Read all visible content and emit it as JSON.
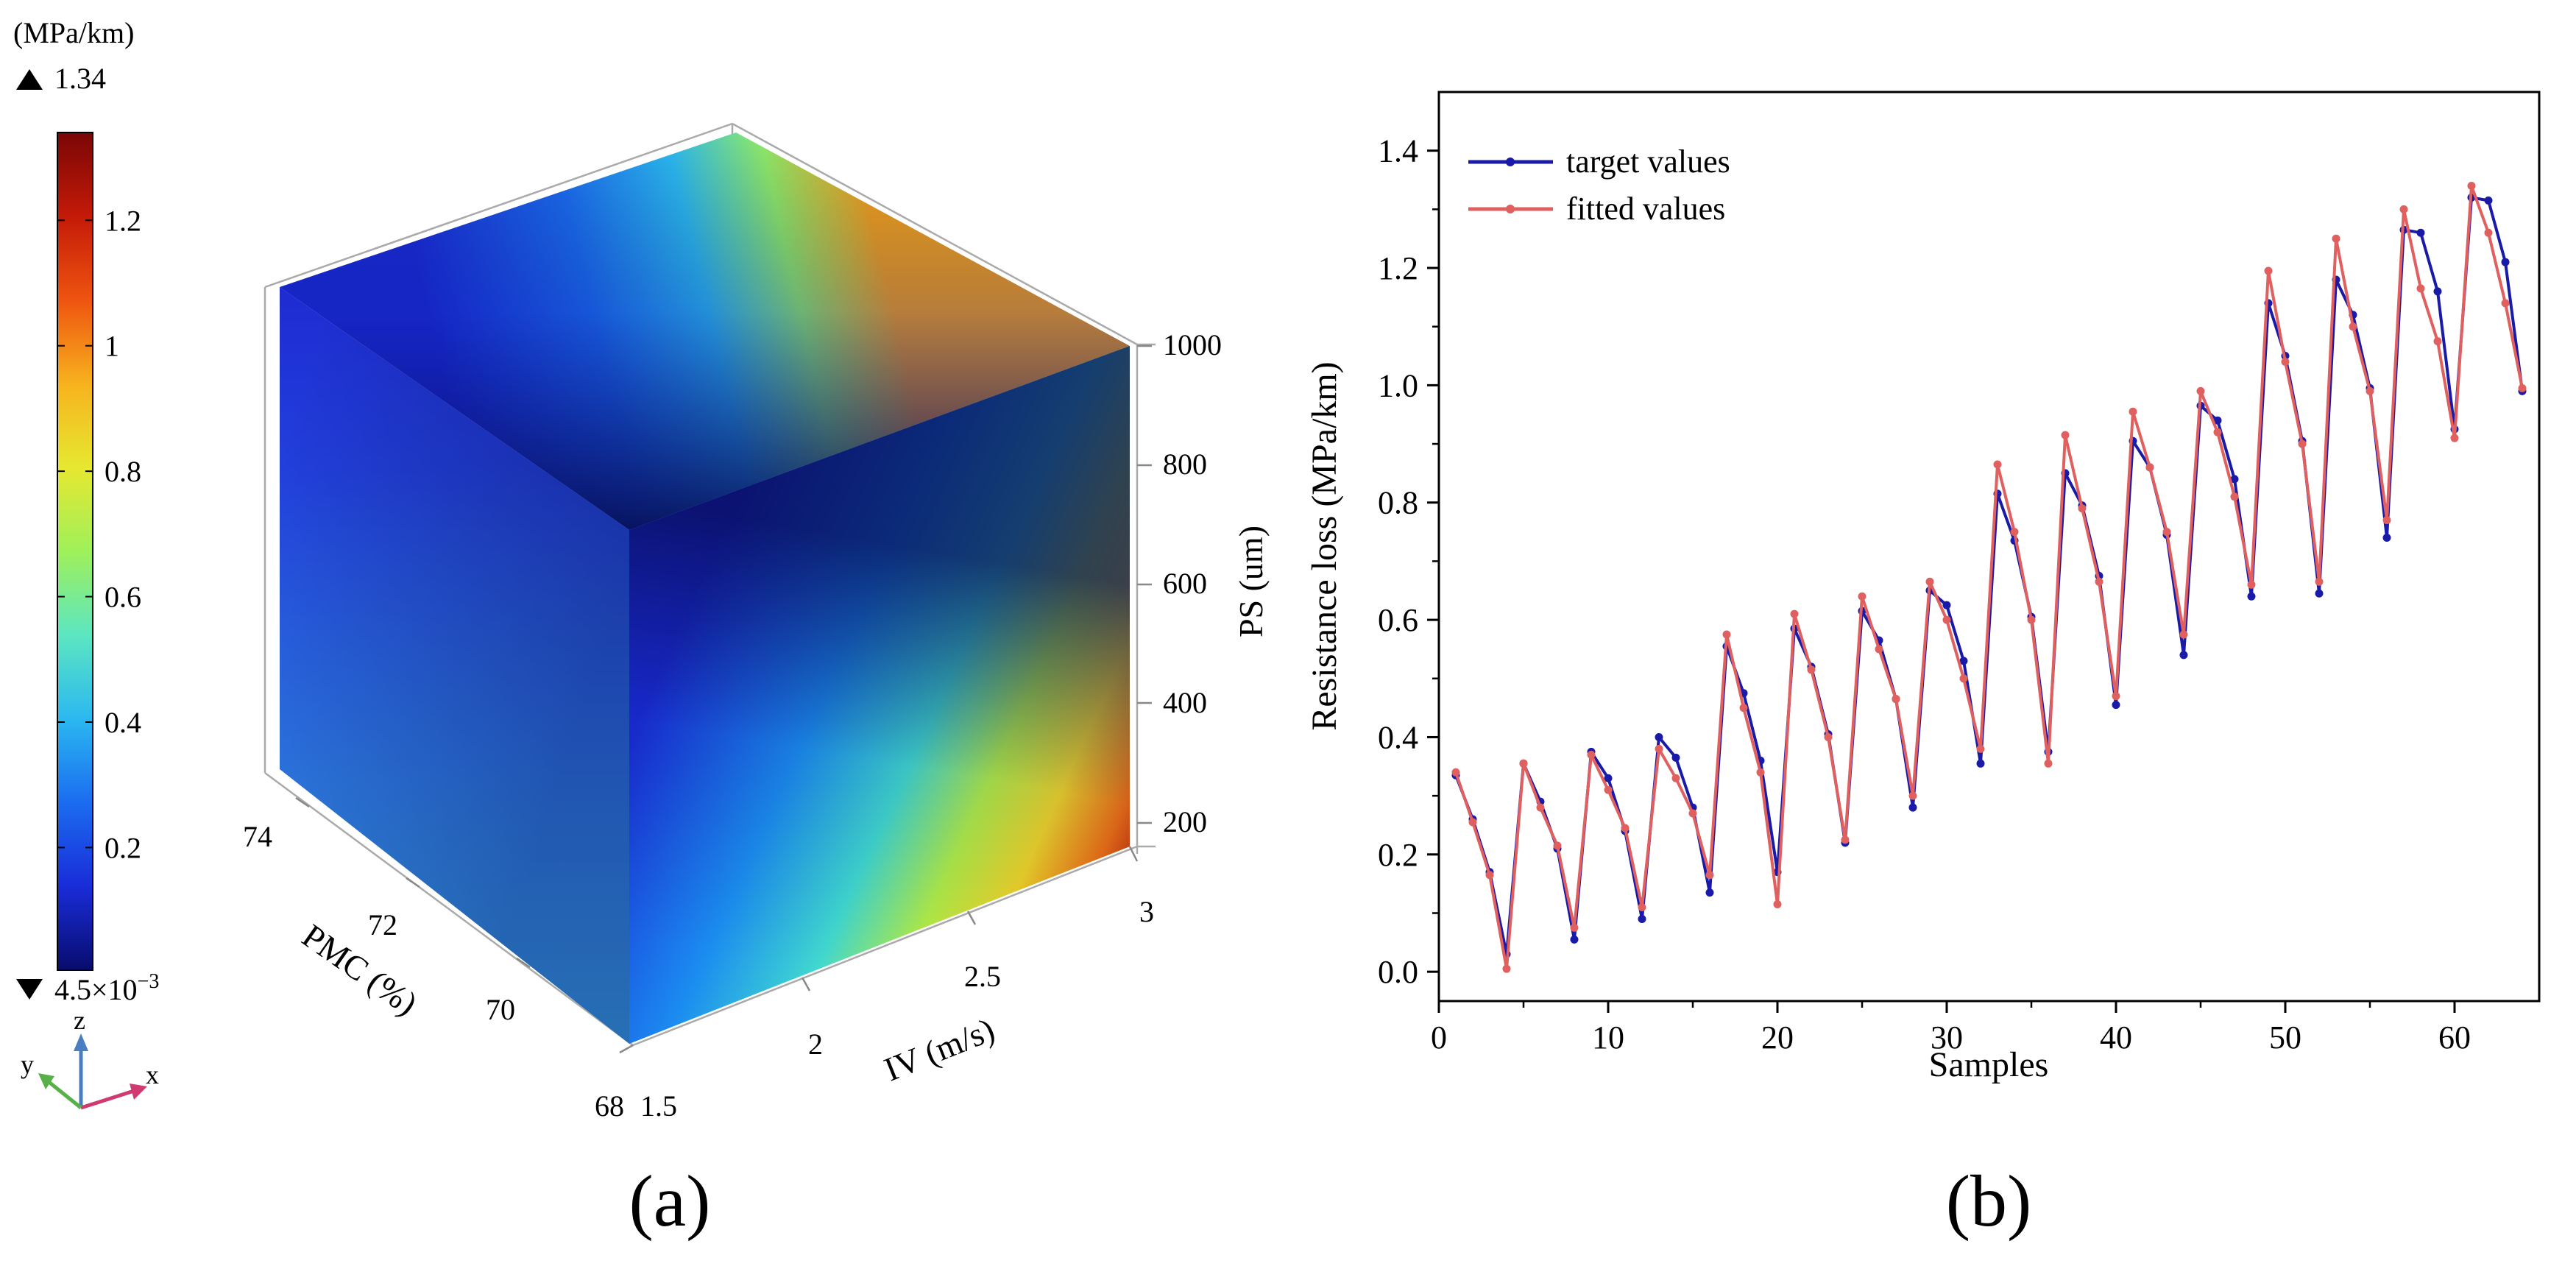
{
  "panels": {
    "a_label": "(a)",
    "b_label": "(b)"
  },
  "colorbar": {
    "unit": "(MPa/km)",
    "max_label": "1.34",
    "min_label": "4.5×10",
    "min_exp": "−3",
    "ticks": [
      "0.2",
      "0.4",
      "0.6",
      "0.8",
      "1",
      "1.2"
    ],
    "tick_values": [
      0.2,
      0.4,
      0.6,
      0.8,
      1.0,
      1.2
    ],
    "min": 0.0045,
    "max": 1.34,
    "colors": [
      "#080c6e",
      "#1a2cd8",
      "#1b6cf0",
      "#2bb8f0",
      "#5ce6c2",
      "#9ff05a",
      "#e6e830",
      "#f7b21e",
      "#ee5410",
      "#c41a08",
      "#7a0606"
    ]
  },
  "triad": {
    "x": "x",
    "y": "y",
    "z": "z"
  },
  "cube": {
    "pmc_ticks": [
      "74",
      "72",
      "70",
      "68"
    ],
    "iv_ticks": [
      "1.5",
      "2",
      "2.5",
      "3"
    ],
    "ps_ticks": [
      "200",
      "400",
      "600",
      "800",
      "1000"
    ],
    "pmc_label": "PMC (%)",
    "iv_label": "IV (m/s)",
    "ps_label": "PS (um)"
  },
  "chart_data": {
    "type": "line",
    "title": "",
    "xlabel": "Samples",
    "ylabel": "Resistance loss (MPa/km)",
    "xlim": [
      0,
      65
    ],
    "ylim": [
      -0.05,
      1.5
    ],
    "xticks": [
      0,
      10,
      20,
      30,
      40,
      50,
      60
    ],
    "yticks": [
      0.0,
      0.2,
      0.4,
      0.6,
      0.8,
      1.0,
      1.2,
      1.4
    ],
    "xtick_labels": [
      "0",
      "10",
      "20",
      "30",
      "40",
      "50",
      "60"
    ],
    "ytick_labels": [
      "0.0",
      "0.2",
      "0.4",
      "0.6",
      "0.8",
      "1.0",
      "1.2",
      "1.4"
    ],
    "legend_position": "top-left",
    "x": [
      1,
      2,
      3,
      4,
      5,
      6,
      7,
      8,
      9,
      10,
      11,
      12,
      13,
      14,
      15,
      16,
      17,
      18,
      19,
      20,
      21,
      22,
      23,
      24,
      25,
      26,
      27,
      28,
      29,
      30,
      31,
      32,
      33,
      34,
      35,
      36,
      37,
      38,
      39,
      40,
      41,
      42,
      43,
      44,
      45,
      46,
      47,
      48,
      49,
      50,
      51,
      52,
      53,
      54,
      55,
      56,
      57,
      58,
      59,
      60,
      61,
      62,
      63,
      64
    ],
    "series": [
      {
        "name": "target values",
        "color": "#1a1aa8",
        "values": [
          0.335,
          0.26,
          0.17,
          0.03,
          0.355,
          0.29,
          0.21,
          0.055,
          0.375,
          0.33,
          0.24,
          0.09,
          0.4,
          0.365,
          0.28,
          0.135,
          0.555,
          0.475,
          0.36,
          0.17,
          0.585,
          0.52,
          0.405,
          0.22,
          0.615,
          0.565,
          0.465,
          0.28,
          0.65,
          0.625,
          0.53,
          0.355,
          0.815,
          0.735,
          0.605,
          0.375,
          0.85,
          0.795,
          0.675,
          0.455,
          0.905,
          0.86,
          0.745,
          0.54,
          0.965,
          0.94,
          0.84,
          0.64,
          1.14,
          1.05,
          0.905,
          0.645,
          1.18,
          1.12,
          0.995,
          0.74,
          1.265,
          1.26,
          1.16,
          0.925,
          1.32,
          1.315,
          1.21,
          0.99
        ]
      },
      {
        "name": "fitted values",
        "color": "#e06060",
        "values": [
          0.34,
          0.255,
          0.165,
          0.005,
          0.355,
          0.28,
          0.215,
          0.075,
          0.37,
          0.31,
          0.245,
          0.11,
          0.38,
          0.33,
          0.27,
          0.165,
          0.575,
          0.45,
          0.34,
          0.115,
          0.61,
          0.515,
          0.4,
          0.225,
          0.64,
          0.55,
          0.465,
          0.3,
          0.665,
          0.6,
          0.5,
          0.38,
          0.865,
          0.75,
          0.6,
          0.355,
          0.915,
          0.79,
          0.665,
          0.47,
          0.955,
          0.86,
          0.75,
          0.575,
          0.99,
          0.92,
          0.81,
          0.66,
          1.195,
          1.04,
          0.9,
          0.665,
          1.25,
          1.1,
          0.99,
          0.77,
          1.3,
          1.165,
          1.075,
          0.91,
          1.34,
          1.26,
          1.14,
          0.995
        ]
      }
    ]
  }
}
